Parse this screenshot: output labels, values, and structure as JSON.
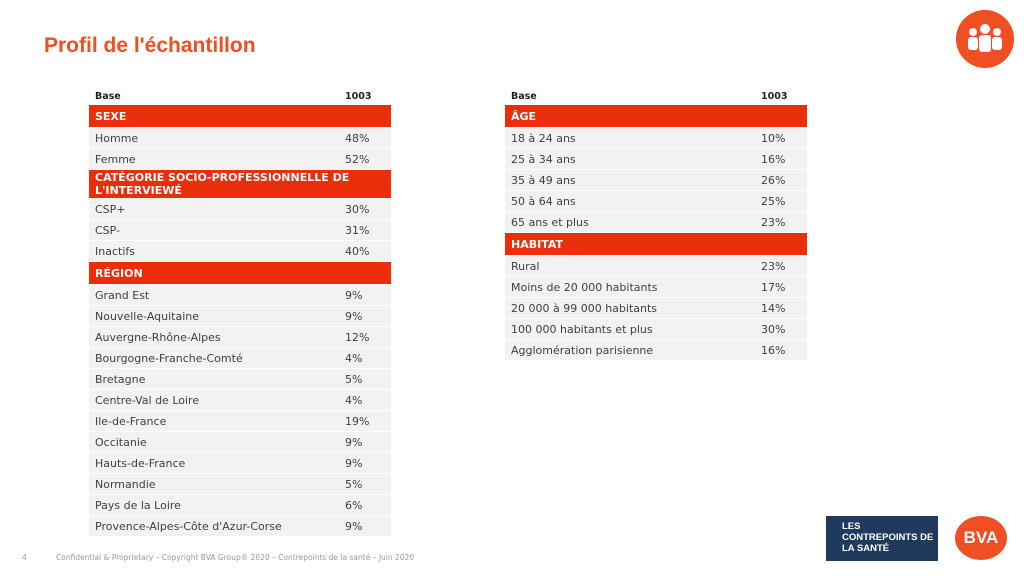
{
  "header": {
    "title": "Profil de l'échantillon"
  },
  "tables": [
    {
      "base_label": "Base",
      "base_value": "1003",
      "sections": [
        {
          "title": "SEXE",
          "rows": [
            [
              "Homme",
              "48%"
            ],
            [
              "Femme",
              "52%"
            ]
          ]
        },
        {
          "title": "CATÉGORIE SOCIO-PROFESSIONNELLE DE L'INTERVIEWÉ",
          "rows": [
            [
              "CSP+",
              "30%"
            ],
            [
              "CSP-",
              "31%"
            ],
            [
              "Inactifs",
              "40%"
            ]
          ]
        },
        {
          "title": "RÉGION",
          "rows": [
            [
              "Grand Est",
              "9%"
            ],
            [
              "Nouvelle-Aquitaine",
              "9%"
            ],
            [
              "Auvergne-Rhône-Alpes",
              "12%"
            ],
            [
              "Bourgogne-Franche-Comté",
              "4%"
            ],
            [
              "Bretagne",
              "5%"
            ],
            [
              "Centre-Val de Loire",
              "4%"
            ],
            [
              "Ile-de-France",
              "19%"
            ],
            [
              "Occitanie",
              "9%"
            ],
            [
              "Hauts-de-France",
              "9%"
            ],
            [
              "Normandie",
              "5%"
            ],
            [
              "Pays de la Loire",
              "6%"
            ],
            [
              "Provence-Alpes-Côte d'Azur-Corse",
              "9%"
            ]
          ]
        }
      ]
    },
    {
      "base_label": "Base",
      "base_value": "1003",
      "sections": [
        {
          "title": "ÂGE",
          "rows": [
            [
              "18 à 24 ans",
              "10%"
            ],
            [
              "25 à 34 ans",
              "16%"
            ],
            [
              "35 à 49 ans",
              "26%"
            ],
            [
              "50 à 64 ans",
              "25%"
            ],
            [
              "65 ans et plus",
              "23%"
            ]
          ]
        },
        {
          "title": "HABITAT",
          "rows": [
            [
              "Rural",
              "23%"
            ],
            [
              "Moins de 20 000 habitants",
              "17%"
            ],
            [
              "20 000 à 99 000 habitants",
              "14%"
            ],
            [
              "100 000 habitants et plus",
              "30%"
            ],
            [
              "Agglomération parisienne",
              "16%"
            ]
          ]
        }
      ]
    }
  ],
  "footer": {
    "page": "4",
    "text": "Confidential & Proprietary – Copyright BVA Group® 2020 – Contrepoints de la santé – Juin 2020"
  },
  "logos": {
    "partner": "LES CONTREPOINTS DE LA SANTÉ",
    "brand": "BVA"
  }
}
